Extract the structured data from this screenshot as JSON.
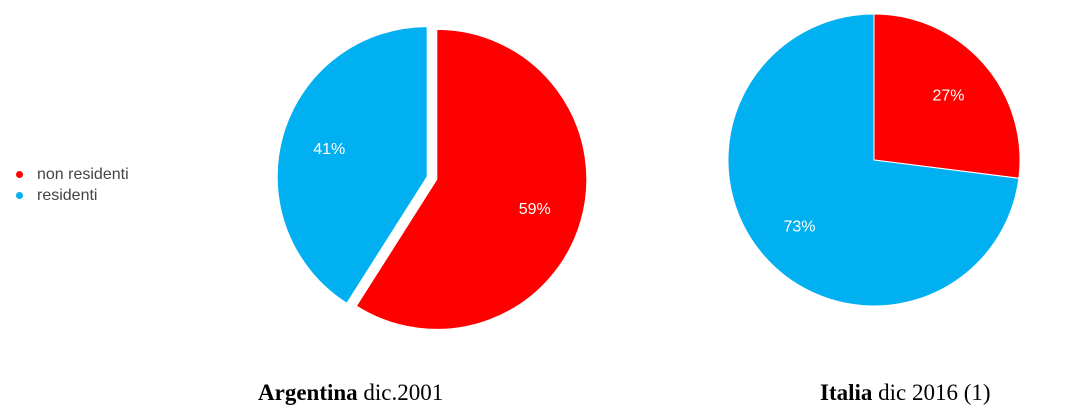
{
  "legend": {
    "items": [
      {
        "label": "non residenti",
        "color": "#ff0000"
      },
      {
        "label": "residenti",
        "color": "#00b0f0"
      }
    ]
  },
  "chart_data": [
    {
      "type": "pie",
      "title_bold": "Argentina",
      "title_rest": " dic.2001",
      "categories": [
        "non residenti",
        "residenti"
      ],
      "values": [
        59,
        41
      ],
      "data_labels": [
        "59%",
        "41%"
      ],
      "colors": [
        "#ff0000",
        "#00b0f0"
      ]
    },
    {
      "type": "pie",
      "title_bold": "Italia",
      "title_rest": " dic 2016 (1)",
      "categories": [
        "non residenti",
        "residenti"
      ],
      "values": [
        27,
        73
      ],
      "data_labels": [
        "27%",
        "73%"
      ],
      "colors": [
        "#ff0000",
        "#00b0f0"
      ]
    }
  ]
}
